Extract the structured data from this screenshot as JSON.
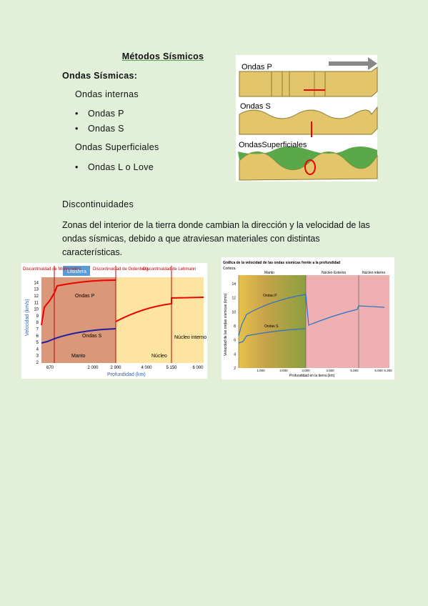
{
  "title": "Métodos Sísmicos",
  "section": "Ondas Sísmicas:",
  "internal_heading": "Ondas internas",
  "internal_items": [
    "Ondas P",
    "Ondas S"
  ],
  "surface_heading": "Ondas Superficiales",
  "surface_items": [
    "Ondas L o Love"
  ],
  "discontinuities_heading": "Discontinuidades",
  "paragraph": "Zonas del interior de la tierra donde cambian la dirección y la velocidad de las ondas sísmicas, debido a que atraviesan materiales con distintas características.",
  "wave_figure": {
    "labels": [
      "Ondas P",
      "Ondas S",
      "OndasSuperficiales"
    ]
  },
  "left_chart": {
    "annotations": [
      "Discontinuidad de Mohorovicic",
      "Litosfera",
      "Discontinuidad de Gutenberg",
      "Discontinuidad de Lehmann",
      "Ondas P",
      "Ondas S",
      "Manto",
      "Núcleo",
      "Núcleo interno"
    ],
    "y_label": "Velocidad (km/s)",
    "x_label": "Profundidad (km)",
    "yticks": [
      2,
      3,
      4,
      5,
      6,
      7,
      8,
      9,
      10,
      11,
      12,
      13,
      14
    ],
    "xticks": [
      "670",
      "2 000",
      "2 900",
      "4 000",
      "5 150",
      "6 000"
    ]
  },
  "right_chart": {
    "title": "Gráfica de la velocidad de las ondas sísmicas frente a la profundidad",
    "annotations": [
      "Corteza",
      "Manto",
      "Núcleo Externo",
      "Núcleo interno",
      "Ondas P",
      "Ondas S"
    ],
    "y_label": "Velocidad de las ondas sísmicas (km/s)",
    "x_label": "Profundidad en la tierra (km)",
    "yticks": [
      2,
      4,
      6,
      8,
      10,
      12,
      14
    ],
    "xticks": [
      "1.000",
      "2.000",
      "3.000",
      "4.000",
      "5.000",
      "6.000",
      "6.300"
    ]
  }
}
